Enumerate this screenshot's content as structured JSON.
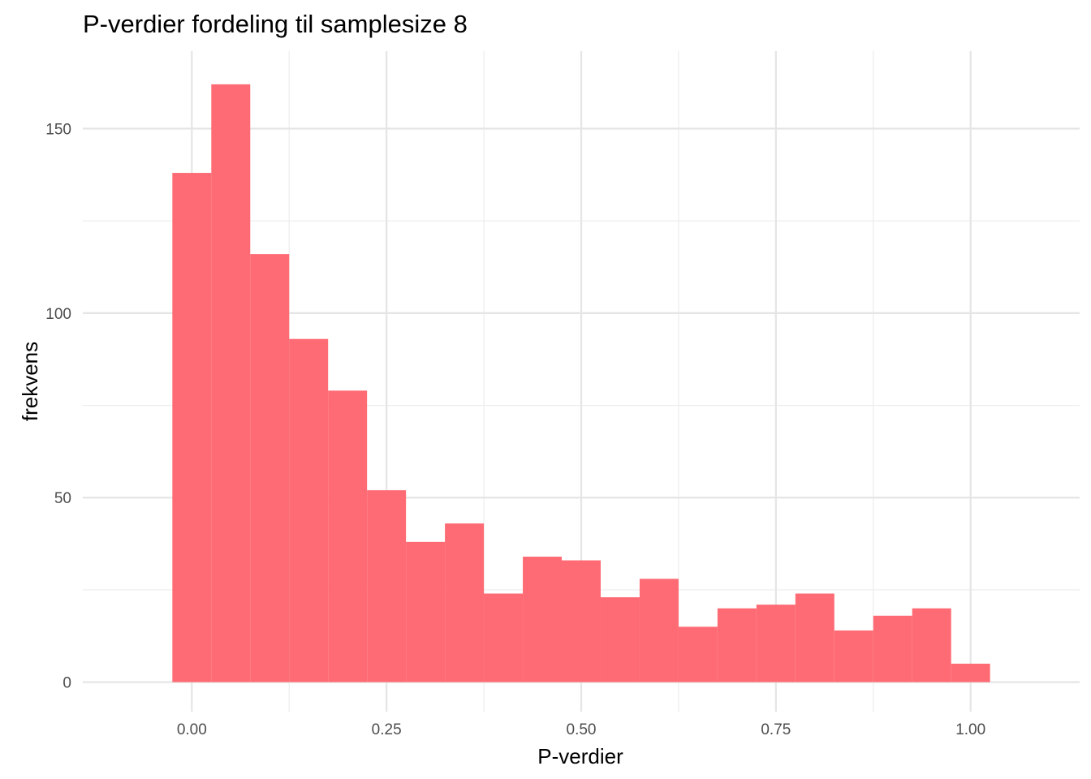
{
  "chart_data": {
    "type": "bar",
    "title": "P-verdier fordeling til samplesize 8",
    "xlabel": "P-verdier",
    "ylabel": "frekvens",
    "bin_width": 0.05,
    "bins": [
      {
        "x_start": -0.025,
        "x_end": 0.025,
        "count": 138
      },
      {
        "x_start": 0.025,
        "x_end": 0.075,
        "count": 162
      },
      {
        "x_start": 0.075,
        "x_end": 0.125,
        "count": 116
      },
      {
        "x_start": 0.125,
        "x_end": 0.175,
        "count": 93
      },
      {
        "x_start": 0.175,
        "x_end": 0.225,
        "count": 79
      },
      {
        "x_start": 0.225,
        "x_end": 0.275,
        "count": 52
      },
      {
        "x_start": 0.275,
        "x_end": 0.325,
        "count": 38
      },
      {
        "x_start": 0.325,
        "x_end": 0.375,
        "count": 43
      },
      {
        "x_start": 0.375,
        "x_end": 0.425,
        "count": 24
      },
      {
        "x_start": 0.425,
        "x_end": 0.475,
        "count": 34
      },
      {
        "x_start": 0.475,
        "x_end": 0.525,
        "count": 33
      },
      {
        "x_start": 0.525,
        "x_end": 0.575,
        "count": 23
      },
      {
        "x_start": 0.575,
        "x_end": 0.625,
        "count": 28
      },
      {
        "x_start": 0.625,
        "x_end": 0.675,
        "count": 15
      },
      {
        "x_start": 0.675,
        "x_end": 0.725,
        "count": 20
      },
      {
        "x_start": 0.725,
        "x_end": 0.775,
        "count": 21
      },
      {
        "x_start": 0.775,
        "x_end": 0.825,
        "count": 24
      },
      {
        "x_start": 0.825,
        "x_end": 0.875,
        "count": 14
      },
      {
        "x_start": 0.875,
        "x_end": 0.925,
        "count": 18
      },
      {
        "x_start": 0.925,
        "x_end": 0.975,
        "count": 20
      },
      {
        "x_start": 0.975,
        "x_end": 1.025,
        "count": 5
      }
    ],
    "x_ticks": [
      {
        "value": 0,
        "label": "0.00"
      },
      {
        "value": 0.25,
        "label": "0.25"
      },
      {
        "value": 0.5,
        "label": "0.50"
      },
      {
        "value": 0.75,
        "label": "0.75"
      },
      {
        "value": 1,
        "label": "1.00"
      }
    ],
    "y_ticks": [
      {
        "value": 0,
        "label": "0"
      },
      {
        "value": 50,
        "label": "50"
      },
      {
        "value": 100,
        "label": "100"
      },
      {
        "value": 150,
        "label": "150"
      }
    ],
    "xlim": [
      -0.14,
      1.14
    ],
    "ylim": [
      -8,
      171
    ],
    "grid": true,
    "bar_color": "#ff6670",
    "gridline_color": "#e5e5e5",
    "background": "#ffffff"
  }
}
